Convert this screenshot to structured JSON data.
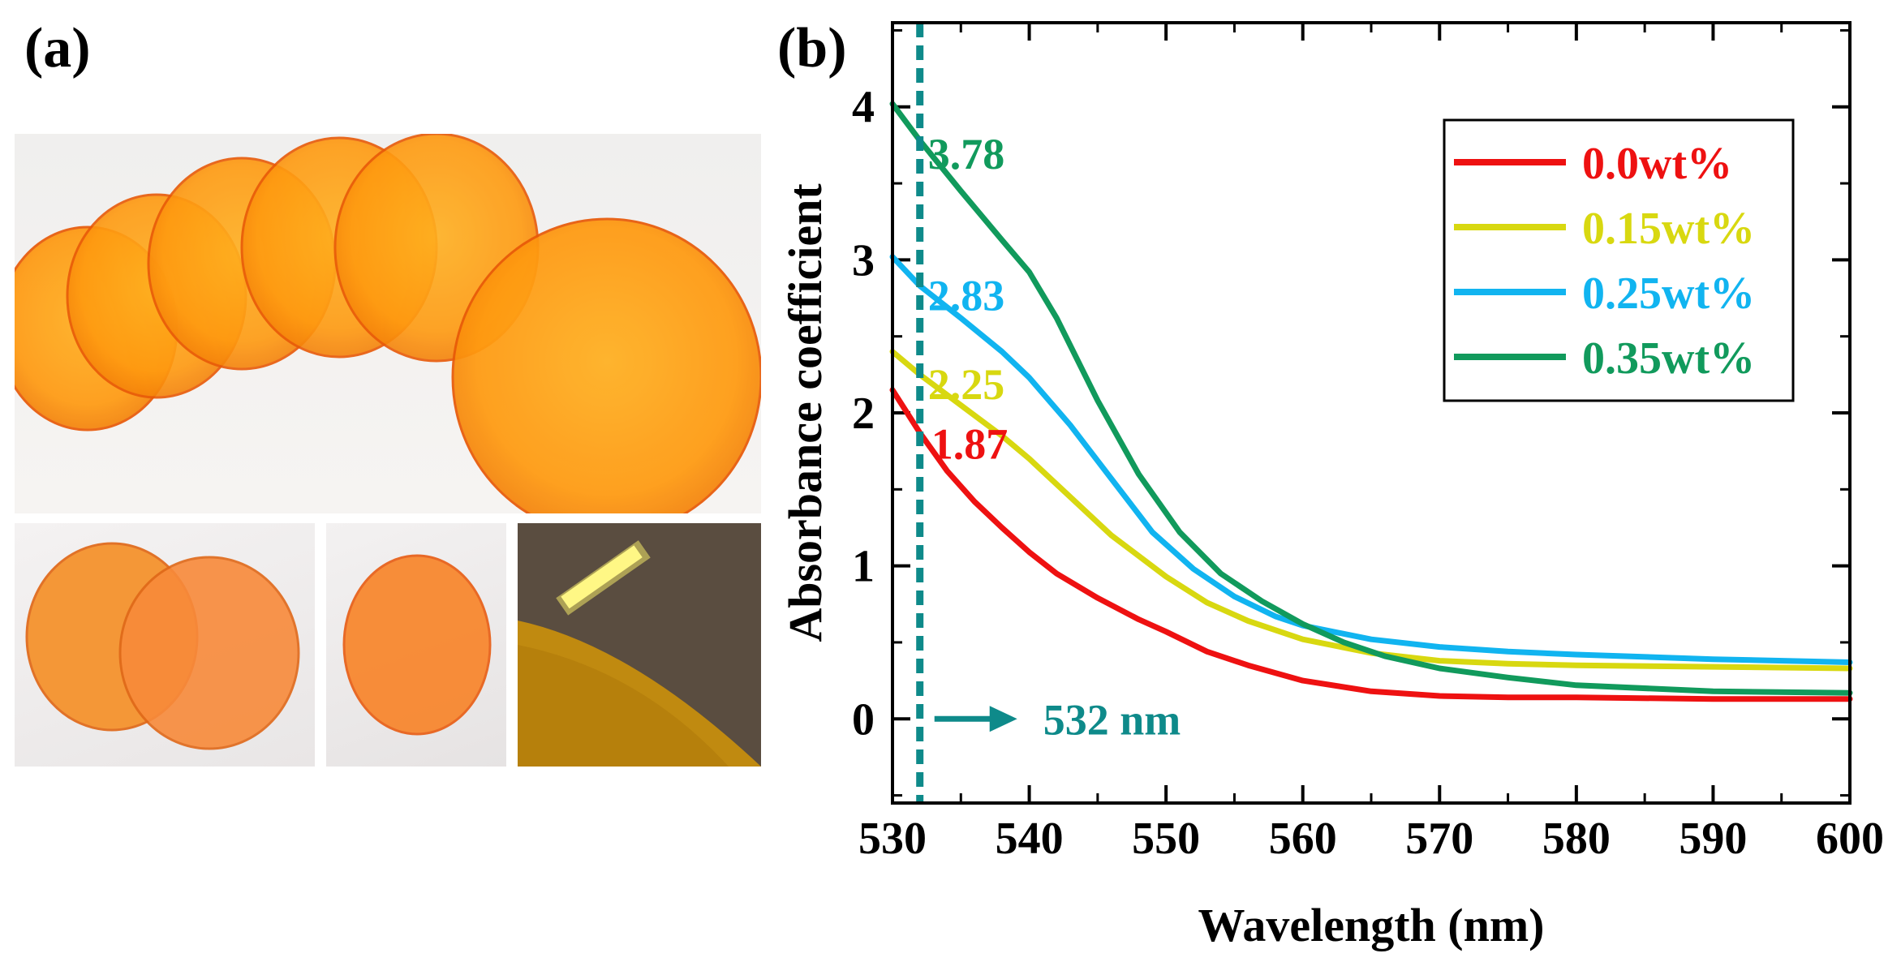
{
  "panels": {
    "a_label": "(a)",
    "b_label": "(b)"
  },
  "photos": {
    "main": "photo-of-orange-filter-discs",
    "pair": "photo-of-two-filter-discs",
    "single": "photo-of-single-filter-disc",
    "lamp": "photo-of-filter-with-lamp"
  },
  "colors": {
    "red": "#ee1111",
    "yellow": "#d8d810",
    "blue": "#11b4f0",
    "green": "#119a5c",
    "marker": "#0e8a8a"
  },
  "chart_data": {
    "type": "line",
    "title": "",
    "xlabel": "Wavelength (nm)",
    "ylabel": "Absorbance coefficient",
    "xlim": [
      530,
      600
    ],
    "ylim": [
      -0.55,
      4.55
    ],
    "xticks": [
      530,
      540,
      550,
      560,
      570,
      580,
      590,
      600
    ],
    "yticks": [
      0,
      1,
      2,
      3,
      4
    ],
    "legend_position": "top-right",
    "series": [
      {
        "name": "0.0wt%",
        "color": "#ee1111",
        "x": [
          530,
          532,
          534,
          536,
          538,
          540,
          542,
          545,
          548,
          550,
          553,
          556,
          560,
          565,
          570,
          575,
          580,
          590,
          600
        ],
        "y": [
          2.15,
          1.87,
          1.62,
          1.42,
          1.25,
          1.09,
          0.95,
          0.79,
          0.65,
          0.57,
          0.44,
          0.35,
          0.25,
          0.18,
          0.15,
          0.14,
          0.14,
          0.13,
          0.13
        ]
      },
      {
        "name": "0.15wt%",
        "color": "#d8d810",
        "x": [
          530,
          532,
          535,
          538,
          540,
          543,
          546,
          550,
          553,
          556,
          560,
          565,
          570,
          575,
          580,
          590,
          600
        ],
        "y": [
          2.4,
          2.25,
          2.05,
          1.85,
          1.7,
          1.45,
          1.2,
          0.93,
          0.76,
          0.64,
          0.52,
          0.43,
          0.38,
          0.36,
          0.35,
          0.34,
          0.33
        ]
      },
      {
        "name": "0.25wt%",
        "color": "#11b4f0",
        "x": [
          530,
          532,
          535,
          538,
          540,
          543,
          546,
          549,
          552,
          555,
          558,
          560,
          565,
          570,
          575,
          580,
          590,
          600
        ],
        "y": [
          3.02,
          2.83,
          2.62,
          2.4,
          2.23,
          1.92,
          1.57,
          1.22,
          0.98,
          0.8,
          0.67,
          0.61,
          0.52,
          0.47,
          0.44,
          0.42,
          0.39,
          0.37
        ]
      },
      {
        "name": "0.35wt%",
        "color": "#119a5c",
        "x": [
          530,
          532,
          535,
          538,
          540,
          542,
          545,
          548,
          551,
          554,
          557,
          560,
          563,
          566,
          570,
          575,
          580,
          590,
          600
        ],
        "y": [
          4.02,
          3.78,
          3.45,
          3.13,
          2.92,
          2.62,
          2.08,
          1.6,
          1.22,
          0.95,
          0.77,
          0.62,
          0.5,
          0.41,
          0.33,
          0.27,
          0.22,
          0.18,
          0.17
        ]
      }
    ],
    "marker_line": {
      "x": 532,
      "label": "532 nm"
    },
    "annotations": [
      {
        "text": "3.78",
        "x": 532,
        "y": 3.78,
        "color": "#119a5c"
      },
      {
        "text": "2.83",
        "x": 532,
        "y": 2.83,
        "color": "#11b4f0"
      },
      {
        "text": "2.25",
        "x": 532,
        "y": 2.25,
        "color": "#d8d810"
      },
      {
        "text": "1.87",
        "x": 532,
        "y": 1.87,
        "color": "#ee1111"
      }
    ]
  }
}
